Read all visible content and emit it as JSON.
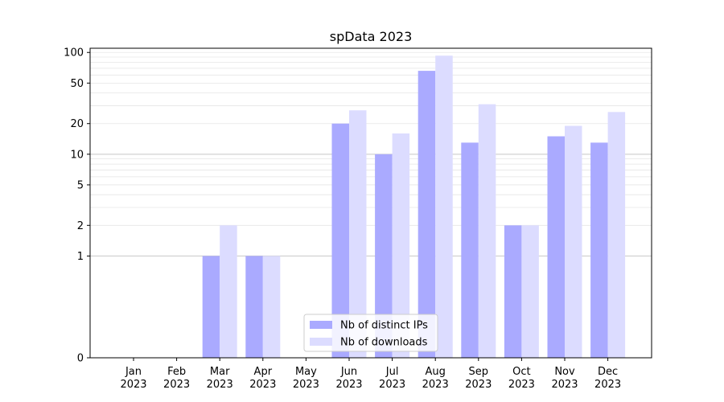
{
  "chart_data": {
    "type": "bar",
    "title": "spData 2023",
    "xlabel": "",
    "ylabel": "",
    "y_scale": "symlog",
    "ylim": [
      0,
      110
    ],
    "y_ticks": [
      0,
      1,
      2,
      5,
      10,
      20,
      50,
      100
    ],
    "grid": "horizontal, major lines at 1 and 10 plus light minor lines",
    "legend_position": "bottom-center",
    "categories": [
      [
        "Jan",
        "2023"
      ],
      [
        "Feb",
        "2023"
      ],
      [
        "Mar",
        "2023"
      ],
      [
        "Apr",
        "2023"
      ],
      [
        "May",
        "2023"
      ],
      [
        "Jun",
        "2023"
      ],
      [
        "Jul",
        "2023"
      ],
      [
        "Aug",
        "2023"
      ],
      [
        "Sep",
        "2023"
      ],
      [
        "Oct",
        "2023"
      ],
      [
        "Nov",
        "2023"
      ],
      [
        "Dec",
        "2023"
      ]
    ],
    "series": [
      {
        "name": "Nb of distinct IPs",
        "color": "#aaaaff",
        "values": [
          0,
          0,
          1,
          1,
          0,
          20,
          10,
          66,
          13,
          2,
          15,
          13
        ]
      },
      {
        "name": "Nb of downloads",
        "color": "#dcdcff",
        "values": [
          0,
          0,
          2,
          1,
          0,
          27,
          16,
          93,
          31,
          2,
          19,
          26
        ]
      }
    ]
  }
}
